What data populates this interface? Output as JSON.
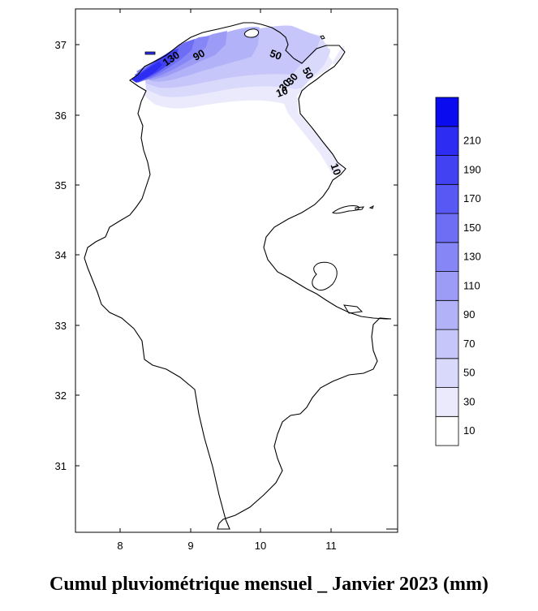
{
  "title": "Cumul pluviométrique mensuel _ Janvier 2023 (mm)",
  "chart_data": {
    "type": "contour-map",
    "xticks": [
      "8",
      "9",
      "10",
      "11"
    ],
    "yticks": [
      "37",
      "36",
      "35",
      "34",
      "33",
      "32",
      "31"
    ],
    "xlim": [
      7.45,
      11.9
    ],
    "ylim": [
      30.05,
      37.5
    ],
    "contour_labels": [
      {
        "text": "130",
        "lon": 8.8,
        "lat": 36.75,
        "rotate": -35
      },
      {
        "text": "90",
        "lon": 9.18,
        "lat": 36.8,
        "rotate": -30
      },
      {
        "text": "50",
        "lon": 10.2,
        "lat": 36.8,
        "rotate": 20
      },
      {
        "text": "50",
        "lon": 10.62,
        "lat": 36.56,
        "rotate": 60
      },
      {
        "text": "30",
        "lon": 10.48,
        "lat": 36.47,
        "rotate": -50
      },
      {
        "text": "30",
        "lon": 10.38,
        "lat": 36.38,
        "rotate": -50
      },
      {
        "text": "10",
        "lon": 10.32,
        "lat": 36.27,
        "rotate": -20
      },
      {
        "text": "10",
        "lon": 11.0,
        "lat": 35.2,
        "rotate": 70
      }
    ],
    "legend": {
      "levels": [
        "10",
        "30",
        "50",
        "70",
        "90",
        "110",
        "130",
        "150",
        "170",
        "190",
        "210"
      ],
      "colors": [
        "#ffffff",
        "#eaeafc",
        "#d9d9fb",
        "#c6c6fa",
        "#b2b2f9",
        "#9c9cf7",
        "#8686f6",
        "#6e6ef5",
        "#5858f4",
        "#4242f3",
        "#2c2cf2",
        "#0b0bf0"
      ],
      "placement": "right"
    },
    "colors": {
      "outline": "#000000",
      "lake": "#ffffff"
    }
  }
}
